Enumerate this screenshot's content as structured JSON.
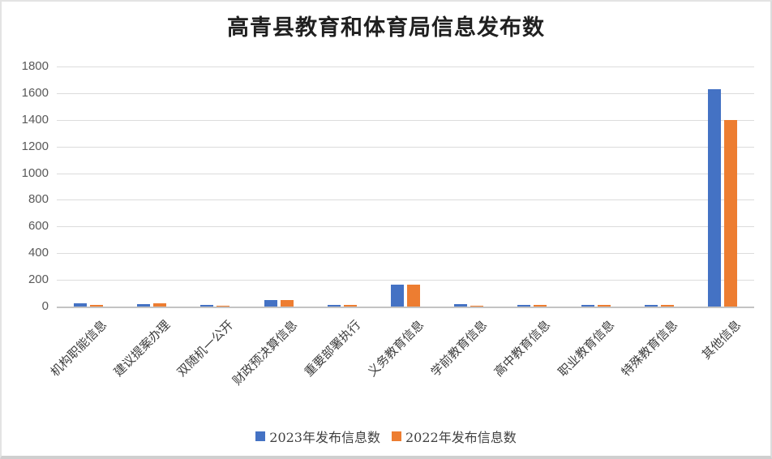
{
  "chart_data": {
    "type": "bar",
    "title": "高青县教育和体育局信息发布数",
    "categories": [
      "机构职能信息",
      "建议提案办理",
      "双随机一公开",
      "财政预决算信息",
      "重要部署执行",
      "义务教育信息",
      "学前教育信息",
      "高中教育信息",
      "职业教育信息",
      "特殊教育信息",
      "其他信息"
    ],
    "series": [
      {
        "name": "2023年发布信息数",
        "color": "#4472C4",
        "values": [
          22,
          20,
          10,
          48,
          15,
          165,
          20,
          12,
          12,
          12,
          1630
        ]
      },
      {
        "name": "2022年发布信息数",
        "color": "#ED7D31",
        "values": [
          12,
          22,
          9,
          50,
          15,
          163,
          8,
          10,
          12,
          10,
          1400
        ]
      }
    ],
    "ylim": [
      0,
      1800
    ],
    "ytick_step": 200,
    "grid": "horizontal",
    "legend_position": "bottom",
    "xlabel": "",
    "ylabel": ""
  }
}
